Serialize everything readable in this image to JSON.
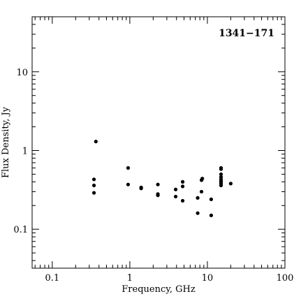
{
  "chart_data": {
    "type": "scatter",
    "title": "1341−171",
    "xlabel": "Frequency, GHz",
    "ylabel": "Flux Density, Jy",
    "xscale": "log",
    "yscale": "log",
    "xlim": [
      0.055,
      100
    ],
    "ylim": [
      0.032,
      50
    ],
    "x_tick_labels": [
      "0.1",
      "1",
      "10",
      "100"
    ],
    "x_tick_values": [
      0.1,
      1,
      10,
      100
    ],
    "y_tick_labels": [
      "0.1",
      "1",
      "10"
    ],
    "y_tick_values": [
      0.1,
      1,
      10
    ],
    "marker_color": "#000000",
    "points": [
      {
        "x": 0.365,
        "y": 1.3
      },
      {
        "x": 0.345,
        "y": 0.43
      },
      {
        "x": 0.345,
        "y": 0.36
      },
      {
        "x": 0.345,
        "y": 0.29
      },
      {
        "x": 0.95,
        "y": 0.6
      },
      {
        "x": 0.95,
        "y": 0.37
      },
      {
        "x": 1.4,
        "y": 0.34
      },
      {
        "x": 1.4,
        "y": 0.33
      },
      {
        "x": 2.3,
        "y": 0.37
      },
      {
        "x": 2.3,
        "y": 0.28
      },
      {
        "x": 2.3,
        "y": 0.27
      },
      {
        "x": 3.9,
        "y": 0.32
      },
      {
        "x": 3.9,
        "y": 0.26
      },
      {
        "x": 4.8,
        "y": 0.4
      },
      {
        "x": 4.8,
        "y": 0.35
      },
      {
        "x": 4.8,
        "y": 0.23
      },
      {
        "x": 7.5,
        "y": 0.25
      },
      {
        "x": 7.5,
        "y": 0.16
      },
      {
        "x": 8.4,
        "y": 0.42
      },
      {
        "x": 8.6,
        "y": 0.44
      },
      {
        "x": 8.4,
        "y": 0.3
      },
      {
        "x": 11.2,
        "y": 0.24
      },
      {
        "x": 11.2,
        "y": 0.15
      },
      {
        "x": 15,
        "y": 0.6
      },
      {
        "x": 15,
        "y": 0.58
      },
      {
        "x": 15,
        "y": 0.5
      },
      {
        "x": 15,
        "y": 0.46
      },
      {
        "x": 15,
        "y": 0.43
      },
      {
        "x": 15,
        "y": 0.41
      },
      {
        "x": 15,
        "y": 0.4
      },
      {
        "x": 15,
        "y": 0.38
      },
      {
        "x": 15,
        "y": 0.36
      },
      {
        "x": 20,
        "y": 0.38
      }
    ]
  }
}
